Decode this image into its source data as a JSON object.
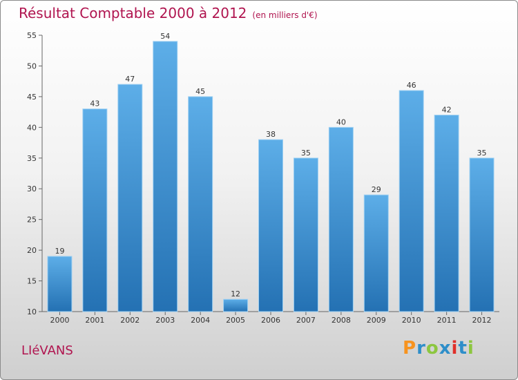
{
  "chart_data": {
    "type": "bar",
    "title": "Résultat Comptable 2000 à 2012",
    "subtitle": "(en milliers d'€)",
    "categories": [
      "2000",
      "2001",
      "2002",
      "2003",
      "2004",
      "2005",
      "2006",
      "2007",
      "2008",
      "2009",
      "2010",
      "2011",
      "2012"
    ],
    "values": [
      19,
      43,
      47,
      54,
      45,
      12,
      38,
      35,
      40,
      29,
      46,
      42,
      35
    ],
    "ylim": [
      10,
      55
    ],
    "yticks": [
      10,
      15,
      20,
      25,
      30,
      35,
      40,
      45,
      50,
      55
    ],
    "xlabel": "",
    "ylabel": "",
    "grid": false
  },
  "commune": "LIéVANS",
  "logo": {
    "text": "Proxiti",
    "letters": [
      "P",
      "r",
      "o",
      "x",
      "i",
      "t",
      "i"
    ],
    "colors": [
      "#f7931e",
      "#2e8ec9",
      "#8cc63f",
      "#2e8ec9",
      "#e0302a",
      "#2e8ec9",
      "#8cc63f"
    ]
  },
  "colors": {
    "title": "#b0144f",
    "bar_light": "#5daee8",
    "bar_dark": "#2471b3"
  }
}
